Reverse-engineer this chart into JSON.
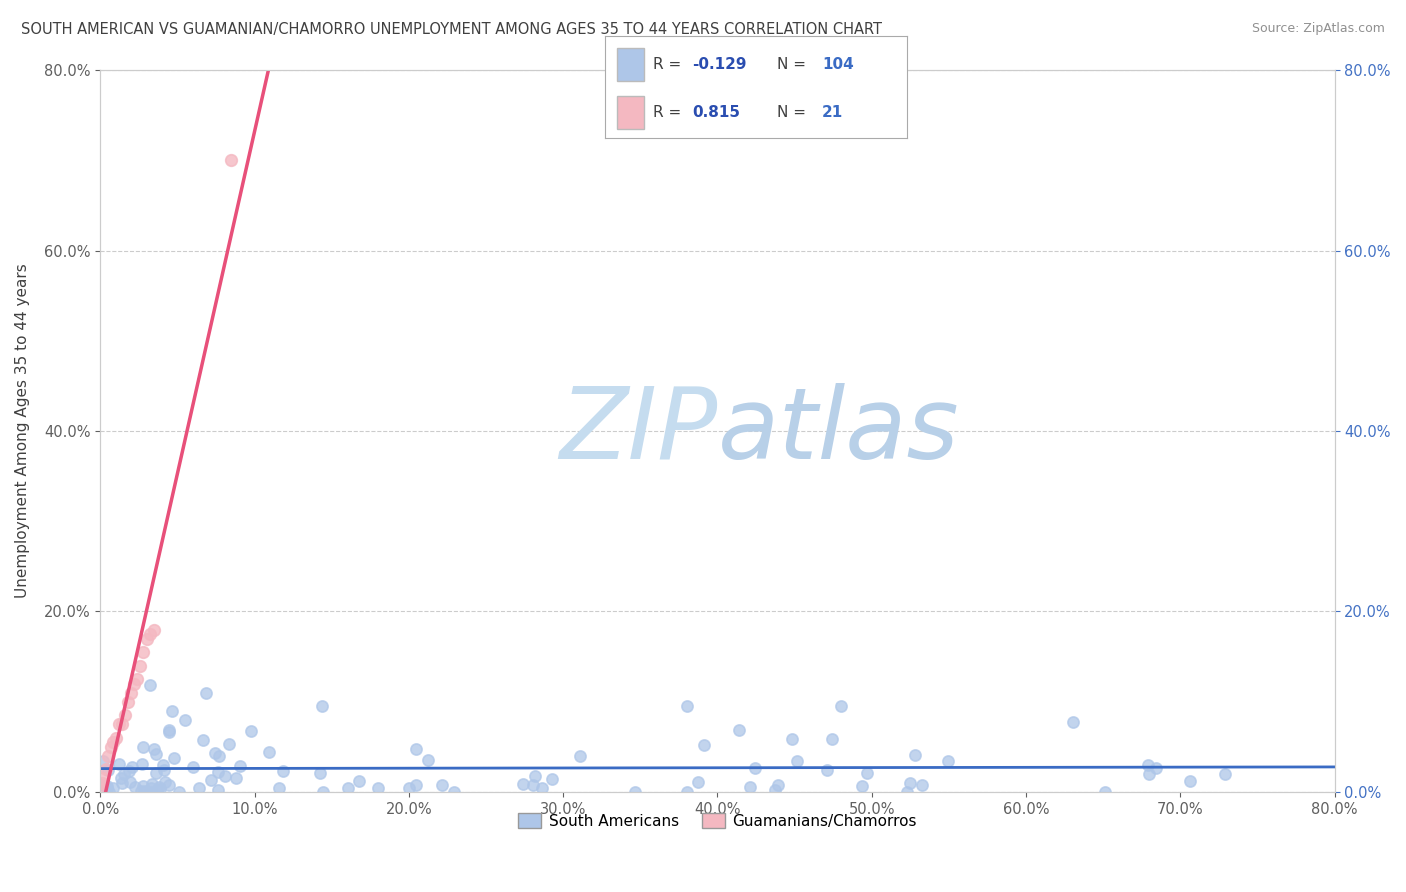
{
  "title": "SOUTH AMERICAN VS GUAMANIAN/CHAMORRO UNEMPLOYMENT AMONG AGES 35 TO 44 YEARS CORRELATION CHART",
  "source": "Source: ZipAtlas.com",
  "ylabel": "Unemployment Among Ages 35 to 44 years",
  "xlim": [
    0.0,
    0.8
  ],
  "ylim": [
    0.0,
    0.8
  ],
  "legend_items": [
    {
      "color": "#aec6e8",
      "label": "South Americans",
      "R": "-0.129",
      "N": "104"
    },
    {
      "color": "#f4b8c1",
      "label": "Guamanians/Chamorros",
      "R": "0.815",
      "N": "21"
    }
  ],
  "watermark_zip_color": "#c8dff0",
  "watermark_atlas_color": "#b0cce8",
  "background_color": "#ffffff",
  "grid_color": "#cccccc",
  "title_color": "#404040",
  "axis_label_color": "#404040",
  "left_tick_color": "#606060",
  "right_tick_color": "#4472c4",
  "bottom_tick_color": "#606060",
  "blue_scatter_color": "#aec6e8",
  "pink_scatter_color": "#f4b8c1",
  "blue_line_color": "#3a6bc4",
  "pink_line_color": "#e8507a",
  "pink_dashed_color": "#f0a0b8",
  "legend_text_color": "#404040",
  "legend_R_color": "#2a4db0",
  "legend_N_color": "#3a6bc4"
}
